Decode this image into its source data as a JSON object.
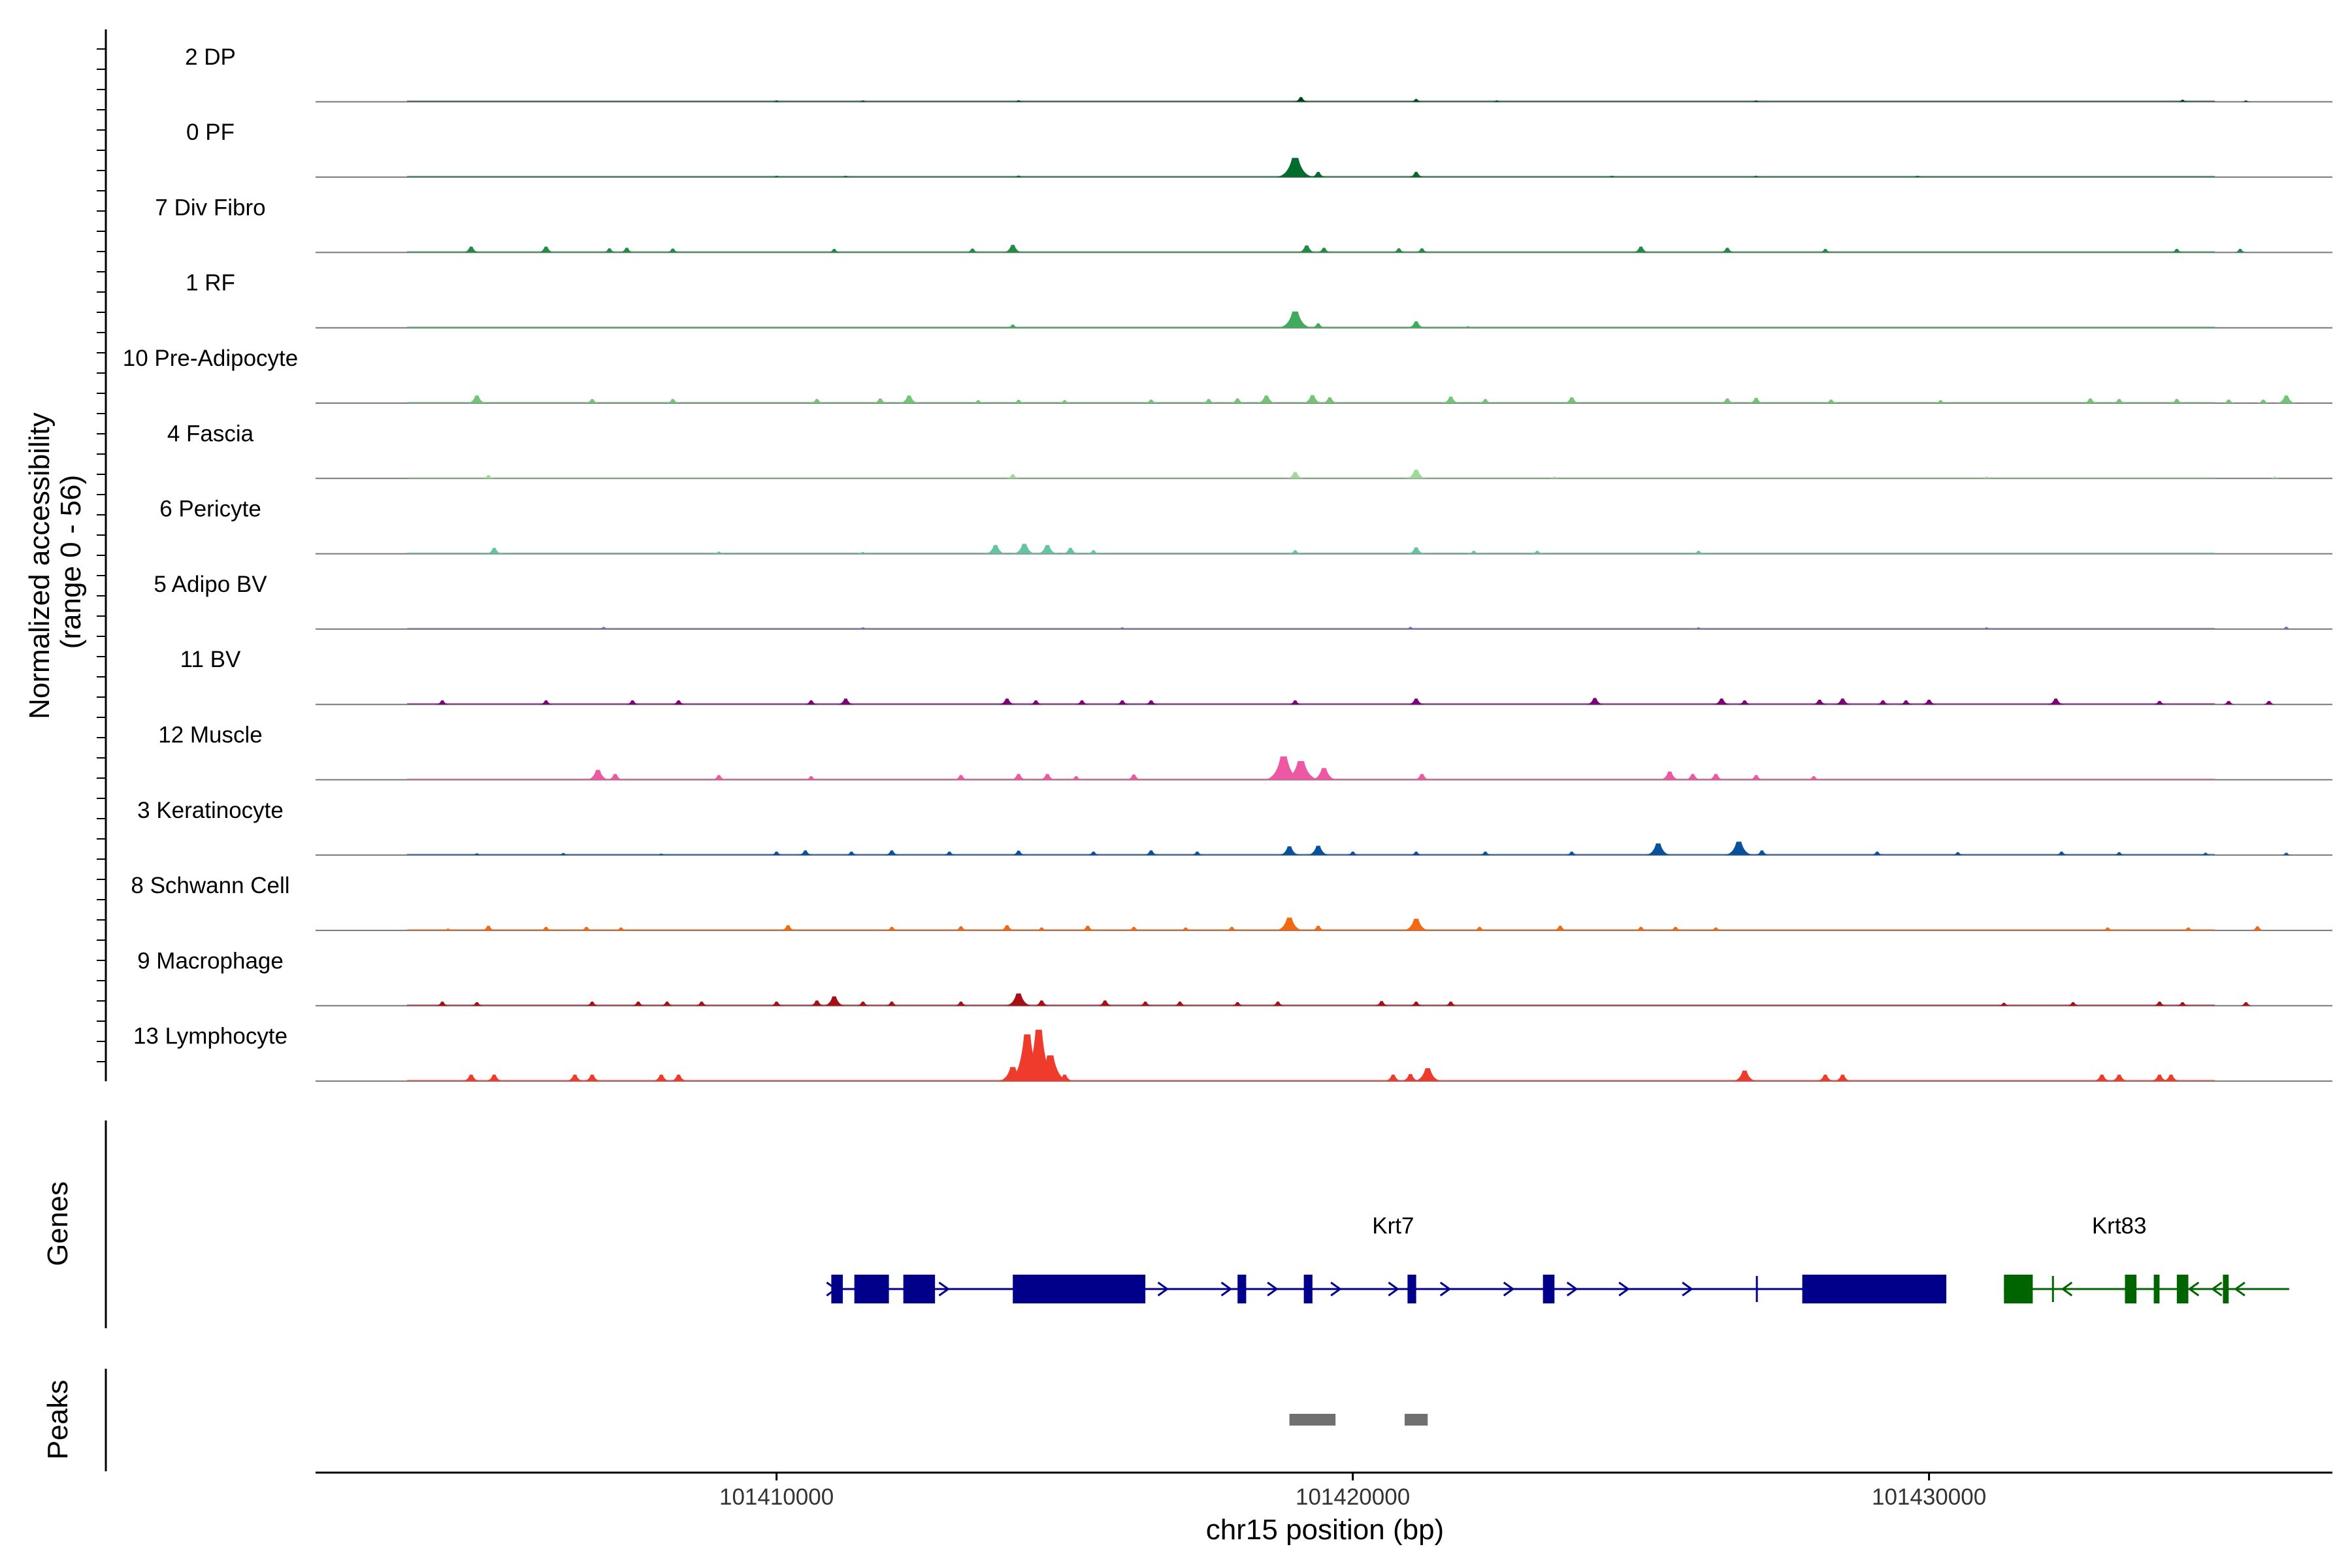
{
  "chart_data": {
    "type": "area",
    "ylabel": [
      "Normalized accessibility",
      "(range 0 - 56)"
    ],
    "xlabel": "chr15 position (bp)",
    "xlim": [
      101402000,
      101437000
    ],
    "x_ticks": [
      101410000,
      101420000,
      101430000
    ],
    "x_tick_labels": [
      "101410000",
      "101420000",
      "101430000"
    ],
    "ylim": [
      0,
      56
    ],
    "tracks": [
      {
        "name": "2 DP",
        "color": "#00441b",
        "peaks": [
          [
            101410000,
            0.9
          ],
          [
            101411500,
            0.7
          ],
          [
            101414200,
            1.3
          ],
          [
            101419100,
            4.0
          ],
          [
            101421100,
            2.4
          ],
          [
            101422500,
            0.7
          ],
          [
            101427000,
            0.7
          ],
          [
            101434400,
            1.8
          ],
          [
            101435500,
            0.8
          ]
        ]
      },
      {
        "name": "0 PF",
        "color": "#006d2c",
        "peaks": [
          [
            101410000,
            1.0
          ],
          [
            101411200,
            1.1
          ],
          [
            101414200,
            1.3
          ],
          [
            101419000,
            16.5
          ],
          [
            101419400,
            4.5
          ],
          [
            101421100,
            4.5
          ],
          [
            101424500,
            1.0
          ],
          [
            101427000,
            1.1
          ],
          [
            101429800,
            0.8
          ]
        ]
      },
      {
        "name": "7 Div Fibro",
        "color": "#238b45",
        "peaks": [
          [
            101404700,
            5.0
          ],
          [
            101406000,
            5.0
          ],
          [
            101407100,
            3.5
          ],
          [
            101407400,
            4.0
          ],
          [
            101408200,
            3.3
          ],
          [
            101411000,
            3.0
          ],
          [
            101413400,
            3.3
          ],
          [
            101414100,
            6.5
          ],
          [
            101419200,
            6.0
          ],
          [
            101419500,
            4.0
          ],
          [
            101420800,
            3.5
          ],
          [
            101421200,
            3.5
          ],
          [
            101425000,
            5.0
          ],
          [
            101426500,
            4.0
          ],
          [
            101428200,
            3.0
          ],
          [
            101434300,
            3.0
          ],
          [
            101435400,
            3.0
          ]
        ]
      },
      {
        "name": "1 RF",
        "color": "#41ab5d",
        "peaks": [
          [
            101414100,
            2.8
          ],
          [
            101419000,
            14.0
          ],
          [
            101419400,
            3.8
          ],
          [
            101421100,
            5.5
          ],
          [
            101422000,
            1.2
          ]
        ]
      },
      {
        "name": "10 Pre-Adipocyte",
        "color": "#74c476",
        "peaks": [
          [
            101404800,
            6.5
          ],
          [
            101406800,
            3.5
          ],
          [
            101408200,
            3.5
          ],
          [
            101410700,
            3.5
          ],
          [
            101411800,
            4.0
          ],
          [
            101412300,
            6.5
          ],
          [
            101413500,
            2.5
          ],
          [
            101414200,
            2.8
          ],
          [
            101415000,
            2.5
          ],
          [
            101416500,
            3.0
          ],
          [
            101417500,
            3.5
          ],
          [
            101418000,
            4.0
          ],
          [
            101418500,
            6.5
          ],
          [
            101419300,
            6.8
          ],
          [
            101419600,
            5.0
          ],
          [
            101421700,
            5.5
          ],
          [
            101422300,
            3.5
          ],
          [
            101423800,
            5.0
          ],
          [
            101426500,
            4.0
          ],
          [
            101427000,
            4.5
          ],
          [
            101428300,
            3.0
          ],
          [
            101430200,
            2.5
          ],
          [
            101432800,
            4.0
          ],
          [
            101433300,
            3.5
          ],
          [
            101434300,
            3.5
          ],
          [
            101435200,
            3.0
          ],
          [
            101435800,
            3.0
          ],
          [
            101436200,
            6.5
          ]
        ]
      },
      {
        "name": "4 Fascia",
        "color": "#a1d99b",
        "peaks": [
          [
            101405000,
            2.8
          ],
          [
            101414100,
            3.5
          ],
          [
            101419000,
            5.5
          ],
          [
            101421100,
            7.5
          ],
          [
            101423500,
            1.5
          ],
          [
            101431000,
            1.5
          ],
          [
            101436000,
            1.5
          ]
        ]
      },
      {
        "name": "6 Pericyte",
        "color": "#66c2a4",
        "peaks": [
          [
            101405100,
            5.0
          ],
          [
            101409000,
            1.8
          ],
          [
            101411500,
            1.5
          ],
          [
            101413800,
            7.5
          ],
          [
            101414300,
            8.5
          ],
          [
            101414700,
            7.5
          ],
          [
            101415100,
            5.0
          ],
          [
            101415500,
            3.0
          ],
          [
            101419000,
            3.0
          ],
          [
            101421100,
            5.5
          ],
          [
            101422100,
            2.5
          ],
          [
            101423200,
            2.5
          ],
          [
            101426000,
            2.5
          ]
        ]
      },
      {
        "name": "5 Adipo BV",
        "color": "#756bb1",
        "peaks": [
          [
            101407000,
            1.8
          ],
          [
            101411500,
            1.5
          ],
          [
            101416000,
            1.5
          ],
          [
            101421000,
            1.8
          ],
          [
            101426000,
            1.5
          ],
          [
            101431000,
            1.5
          ],
          [
            101436200,
            2.0
          ]
        ]
      },
      {
        "name": "11 BV",
        "color": "#7a0177",
        "peaks": [
          [
            101404200,
            3.5
          ],
          [
            101406000,
            3.5
          ],
          [
            101407500,
            3.5
          ],
          [
            101408300,
            3.5
          ],
          [
            101410600,
            3.5
          ],
          [
            101411200,
            5.0
          ],
          [
            101414000,
            5.0
          ],
          [
            101414500,
            3.5
          ],
          [
            101415300,
            3.5
          ],
          [
            101416000,
            3.5
          ],
          [
            101416500,
            3.5
          ],
          [
            101419000,
            3.5
          ],
          [
            101421100,
            5.0
          ],
          [
            101424200,
            5.5
          ],
          [
            101426400,
            5.0
          ],
          [
            101426800,
            3.5
          ],
          [
            101428100,
            4.0
          ],
          [
            101428500,
            5.0
          ],
          [
            101429200,
            3.5
          ],
          [
            101429600,
            3.5
          ],
          [
            101430000,
            4.0
          ],
          [
            101432200,
            5.0
          ],
          [
            101434000,
            3.0
          ],
          [
            101435200,
            3.0
          ],
          [
            101435900,
            3.0
          ]
        ]
      },
      {
        "name": "12 Muscle",
        "color": "#ec59a2",
        "peaks": [
          [
            101406900,
            8.5
          ],
          [
            101407200,
            5.0
          ],
          [
            101409000,
            4.0
          ],
          [
            101410600,
            3.0
          ],
          [
            101413200,
            4.0
          ],
          [
            101414200,
            5.0
          ],
          [
            101414700,
            5.0
          ],
          [
            101415200,
            3.0
          ],
          [
            101416200,
            4.5
          ],
          [
            101418800,
            20.0
          ],
          [
            101419100,
            16.0
          ],
          [
            101419500,
            10.0
          ],
          [
            101421200,
            5.0
          ],
          [
            101425500,
            7.0
          ],
          [
            101425900,
            5.0
          ],
          [
            101426300,
            5.0
          ],
          [
            101427000,
            4.0
          ],
          [
            101428000,
            3.0
          ]
        ]
      },
      {
        "name": "3 Keratinocyte",
        "color": "#08519c",
        "peaks": [
          [
            101404800,
            1.5
          ],
          [
            101406300,
            1.8
          ],
          [
            101408000,
            1.2
          ],
          [
            101410000,
            3.0
          ],
          [
            101410500,
            4.0
          ],
          [
            101411300,
            3.0
          ],
          [
            101412000,
            4.0
          ],
          [
            101413000,
            3.0
          ],
          [
            101414200,
            3.8
          ],
          [
            101415500,
            3.0
          ],
          [
            101416500,
            4.0
          ],
          [
            101417300,
            3.0
          ],
          [
            101418900,
            7.5
          ],
          [
            101419400,
            8.0
          ],
          [
            101420000,
            3.0
          ],
          [
            101421100,
            3.0
          ],
          [
            101422300,
            3.0
          ],
          [
            101423800,
            3.0
          ],
          [
            101425300,
            10.0
          ],
          [
            101426700,
            11.5
          ],
          [
            101427100,
            4.0
          ],
          [
            101429100,
            3.0
          ],
          [
            101430500,
            2.5
          ],
          [
            101432300,
            3.0
          ],
          [
            101433300,
            2.5
          ],
          [
            101434800,
            2.0
          ],
          [
            101436200,
            2.0
          ]
        ]
      },
      {
        "name": "8 Schwann Cell",
        "color": "#f16913",
        "peaks": [
          [
            101404300,
            1.5
          ],
          [
            101405000,
            4.0
          ],
          [
            101406000,
            3.0
          ],
          [
            101406700,
            3.0
          ],
          [
            101407300,
            2.5
          ],
          [
            101410200,
            4.5
          ],
          [
            101412000,
            3.0
          ],
          [
            101413200,
            3.5
          ],
          [
            101414000,
            4.5
          ],
          [
            101414600,
            2.5
          ],
          [
            101415400,
            4.0
          ],
          [
            101416200,
            3.0
          ],
          [
            101417100,
            2.5
          ],
          [
            101417900,
            3.0
          ],
          [
            101418900,
            11.0
          ],
          [
            101419400,
            4.0
          ],
          [
            101421100,
            10.0
          ],
          [
            101422200,
            3.0
          ],
          [
            101423600,
            4.0
          ],
          [
            101425000,
            3.0
          ],
          [
            101425600,
            3.0
          ],
          [
            101426300,
            2.5
          ],
          [
            101433100,
            2.5
          ],
          [
            101434500,
            2.5
          ],
          [
            101435700,
            3.5
          ]
        ]
      },
      {
        "name": "9 Macrophage",
        "color": "#a50f15",
        "peaks": [
          [
            101404200,
            3.5
          ],
          [
            101404800,
            3.0
          ],
          [
            101406800,
            3.5
          ],
          [
            101407600,
            3.5
          ],
          [
            101408100,
            3.5
          ],
          [
            101408700,
            3.5
          ],
          [
            101410000,
            3.5
          ],
          [
            101410700,
            4.5
          ],
          [
            101411000,
            8.0
          ],
          [
            101411500,
            3.5
          ],
          [
            101412000,
            3.5
          ],
          [
            101413200,
            3.5
          ],
          [
            101414200,
            10.5
          ],
          [
            101414600,
            4.5
          ],
          [
            101415700,
            4.5
          ],
          [
            101416400,
            3.5
          ],
          [
            101417000,
            3.5
          ],
          [
            101418000,
            3.0
          ],
          [
            101418700,
            3.5
          ],
          [
            101420500,
            4.0
          ],
          [
            101421100,
            3.5
          ],
          [
            101421700,
            3.5
          ],
          [
            101431300,
            2.5
          ],
          [
            101432500,
            3.0
          ],
          [
            101434000,
            3.5
          ],
          [
            101434400,
            3.0
          ],
          [
            101435500,
            3.0
          ]
        ]
      },
      {
        "name": "13 Lymphocyte",
        "color": "#ef3b2c",
        "peaks": [
          [
            101404700,
            5.5
          ],
          [
            101405100,
            5.5
          ],
          [
            101406500,
            5.5
          ],
          [
            101406800,
            5.5
          ],
          [
            101408000,
            5.5
          ],
          [
            101408300,
            5.5
          ],
          [
            101414100,
            12.0
          ],
          [
            101414350,
            40.0
          ],
          [
            101414550,
            44.0
          ],
          [
            101414750,
            22.0
          ],
          [
            101415000,
            5.5
          ],
          [
            101420700,
            5.5
          ],
          [
            101421000,
            6.0
          ],
          [
            101421300,
            11.0
          ],
          [
            101426800,
            9.0
          ],
          [
            101428200,
            5.5
          ],
          [
            101428500,
            5.5
          ],
          [
            101433000,
            5.5
          ],
          [
            101433300,
            5.5
          ],
          [
            101434000,
            5.5
          ],
          [
            101434200,
            5.5
          ]
        ]
      }
    ],
    "genes": [
      {
        "name": "Krt7",
        "strand": "+",
        "color": "#00008b",
        "start": 101410950,
        "end": 101430300,
        "exons": [
          [
            101410950,
            101411150
          ],
          [
            101411350,
            101411950
          ],
          [
            101412200,
            101412750
          ],
          [
            101414100,
            101416400
          ],
          [
            101418000,
            101418150
          ],
          [
            101419150,
            101419300
          ],
          [
            101420950,
            101421100
          ],
          [
            101423300,
            101423500
          ],
          [
            101427800,
            101430300
          ]
        ],
        "arrows": [
          101410950,
          101412900,
          101416700,
          101417800,
          101418600,
          101419700,
          101420700,
          101421600,
          101422700,
          101423800,
          101424700,
          101425800
        ],
        "label_pos": 101420700
      },
      {
        "name": "Krt83",
        "strand": "-",
        "color": "#006400",
        "start": 101431300,
        "end": 101436250,
        "exons": [
          [
            101431300,
            101431800
          ],
          [
            101433400,
            101433600
          ],
          [
            101433900,
            101434000
          ],
          [
            101434300,
            101434500
          ],
          [
            101435100,
            101435200
          ]
        ],
        "arrows": [
          101432400,
          101434600,
          101435000,
          101435400
        ],
        "label_pos": 101433300
      }
    ],
    "peak_regions": [
      [
        101418900,
        101419700
      ],
      [
        101420900,
        101421300
      ]
    ],
    "panel_labels": {
      "genes": "Genes",
      "peaks": "Peaks"
    }
  }
}
